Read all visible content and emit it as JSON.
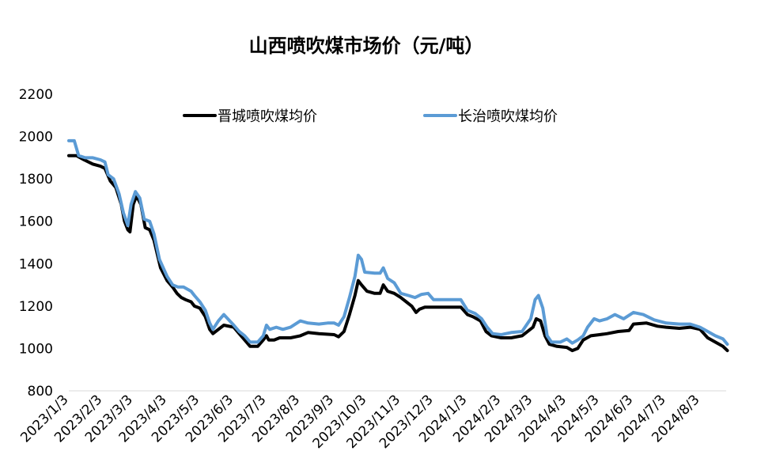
{
  "chart_data": {
    "type": "line",
    "title": "山西喷吹煤市场价（元/吨）",
    "xlabel": "",
    "ylabel": "",
    "ylim": [
      800,
      2200
    ],
    "yticks": [
      800,
      1000,
      1200,
      1400,
      1600,
      1800,
      2000,
      2200
    ],
    "xticks": [
      "2023/1/3",
      "2023/2/3",
      "2023/3/3",
      "2023/4/3",
      "2023/5/3",
      "2023/6/3",
      "2023/7/3",
      "2023/8/3",
      "2023/9/3",
      "2023/10/3",
      "2023/11/3",
      "2023/12/3",
      "2024/1/3",
      "2024/2/3",
      "2024/3/3",
      "2024/4/3",
      "2024/5/3",
      "2024/6/3",
      "2024/7/3",
      "2024/8/3"
    ],
    "grid": false,
    "legend_position": "top",
    "series": [
      {
        "name": "晋城喷吹煤均价",
        "color": "#000000",
        "points": [
          [
            "2023/1/3",
            1910
          ],
          [
            "2023/1/10",
            1910
          ],
          [
            "2023/1/17",
            1890
          ],
          [
            "2023/1/25",
            1870
          ],
          [
            "2023/2/1",
            1860
          ],
          [
            "2023/2/5",
            1850
          ],
          [
            "2023/2/10",
            1790
          ],
          [
            "2023/2/15",
            1760
          ],
          [
            "2023/2/20",
            1680
          ],
          [
            "2023/2/23",
            1600
          ],
          [
            "2023/2/26",
            1560
          ],
          [
            "2023/2/28",
            1550
          ],
          [
            "2023/3/3",
            1680
          ],
          [
            "2023/3/6",
            1720
          ],
          [
            "2023/3/10",
            1680
          ],
          [
            "2023/3/14",
            1570
          ],
          [
            "2023/3/18",
            1560
          ],
          [
            "2023/3/22",
            1510
          ],
          [
            "2023/3/28",
            1380
          ],
          [
            "2023/4/3",
            1320
          ],
          [
            "2023/4/8",
            1290
          ],
          [
            "2023/4/12",
            1260
          ],
          [
            "2023/4/16",
            1240
          ],
          [
            "2023/4/20",
            1230
          ],
          [
            "2023/4/25",
            1220
          ],
          [
            "2023/4/28",
            1200
          ],
          [
            "2023/5/3",
            1190
          ],
          [
            "2023/5/8",
            1150
          ],
          [
            "2023/5/12",
            1090
          ],
          [
            "2023/5/15",
            1070
          ],
          [
            "2023/5/20",
            1090
          ],
          [
            "2023/5/25",
            1110
          ],
          [
            "2023/6/3",
            1100
          ],
          [
            "2023/6/8",
            1070
          ],
          [
            "2023/6/13",
            1040
          ],
          [
            "2023/6/18",
            1010
          ],
          [
            "2023/6/25",
            1010
          ],
          [
            "2023/6/30",
            1040
          ],
          [
            "2023/7/3",
            1060
          ],
          [
            "2023/7/5",
            1040
          ],
          [
            "2023/7/10",
            1040
          ],
          [
            "2023/7/15",
            1050
          ],
          [
            "2023/7/25",
            1050
          ],
          [
            "2023/8/3",
            1060
          ],
          [
            "2023/8/10",
            1075
          ],
          [
            "2023/8/20",
            1070
          ],
          [
            "2023/9/3",
            1065
          ],
          [
            "2023/9/7",
            1055
          ],
          [
            "2023/9/12",
            1080
          ],
          [
            "2023/9/17",
            1160
          ],
          [
            "2023/9/22",
            1250
          ],
          [
            "2023/9/25",
            1320
          ],
          [
            "2023/9/28",
            1300
          ],
          [
            "2023/10/3",
            1270
          ],
          [
            "2023/10/10",
            1260
          ],
          [
            "2023/10/15",
            1260
          ],
          [
            "2023/10/18",
            1300
          ],
          [
            "2023/10/22",
            1270
          ],
          [
            "2023/10/28",
            1260
          ],
          [
            "2023/11/3",
            1240
          ],
          [
            "2023/11/8",
            1220
          ],
          [
            "2023/11/13",
            1200
          ],
          [
            "2023/11/17",
            1170
          ],
          [
            "2023/11/20",
            1185
          ],
          [
            "2023/11/25",
            1195
          ],
          [
            "2023/12/3",
            1195
          ],
          [
            "2023/12/15",
            1195
          ],
          [
            "2023/12/28",
            1195
          ],
          [
            "2024/1/3",
            1160
          ],
          [
            "2024/1/8",
            1150
          ],
          [
            "2024/1/15",
            1130
          ],
          [
            "2024/1/20",
            1080
          ],
          [
            "2024/1/25",
            1060
          ],
          [
            "2024/2/3",
            1050
          ],
          [
            "2024/2/12",
            1050
          ],
          [
            "2024/2/22",
            1060
          ],
          [
            "2024/3/3",
            1100
          ],
          [
            "2024/3/6",
            1140
          ],
          [
            "2024/3/10",
            1130
          ],
          [
            "2024/3/14",
            1060
          ],
          [
            "2024/3/18",
            1020
          ],
          [
            "2024/3/25",
            1010
          ],
          [
            "2024/4/3",
            1005
          ],
          [
            "2024/4/8",
            990
          ],
          [
            "2024/4/13",
            1000
          ],
          [
            "2024/4/18",
            1040
          ],
          [
            "2024/4/25",
            1060
          ],
          [
            "2024/5/3",
            1065
          ],
          [
            "2024/5/10",
            1070
          ],
          [
            "2024/5/20",
            1080
          ],
          [
            "2024/5/30",
            1085
          ],
          [
            "2024/6/3",
            1115
          ],
          [
            "2024/6/15",
            1120
          ],
          [
            "2024/6/25",
            1105
          ],
          [
            "2024/7/3",
            1100
          ],
          [
            "2024/7/15",
            1095
          ],
          [
            "2024/7/25",
            1100
          ],
          [
            "2024/8/3",
            1090
          ],
          [
            "2024/8/10",
            1050
          ],
          [
            "2024/8/17",
            1030
          ],
          [
            "2024/8/24",
            1010
          ],
          [
            "2024/8/28",
            990
          ]
        ]
      },
      {
        "name": "长治喷吹煤均价",
        "color": "#5b9bd5",
        "points": [
          [
            "2023/1/3",
            1980
          ],
          [
            "2023/1/8",
            1980
          ],
          [
            "2023/1/12",
            1910
          ],
          [
            "2023/1/18",
            1900
          ],
          [
            "2023/1/25",
            1900
          ],
          [
            "2023/2/1",
            1890
          ],
          [
            "2023/2/5",
            1880
          ],
          [
            "2023/2/8",
            1820
          ],
          [
            "2023/2/13",
            1800
          ],
          [
            "2023/2/18",
            1730
          ],
          [
            "2023/2/22",
            1640
          ],
          [
            "2023/2/26",
            1580
          ],
          [
            "2023/3/1",
            1680
          ],
          [
            "2023/3/5",
            1740
          ],
          [
            "2023/3/9",
            1710
          ],
          [
            "2023/3/13",
            1610
          ],
          [
            "2023/3/18",
            1600
          ],
          [
            "2023/3/22",
            1540
          ],
          [
            "2023/3/27",
            1420
          ],
          [
            "2023/4/3",
            1340
          ],
          [
            "2023/4/8",
            1300
          ],
          [
            "2023/4/13",
            1290
          ],
          [
            "2023/4/18",
            1290
          ],
          [
            "2023/4/25",
            1270
          ],
          [
            "2023/4/28",
            1250
          ],
          [
            "2023/5/3",
            1220
          ],
          [
            "2023/5/8",
            1180
          ],
          [
            "2023/5/12",
            1120
          ],
          [
            "2023/5/15",
            1090
          ],
          [
            "2023/5/20",
            1130
          ],
          [
            "2023/5/25",
            1160
          ],
          [
            "2023/6/3",
            1110
          ],
          [
            "2023/6/8",
            1080
          ],
          [
            "2023/6/13",
            1060
          ],
          [
            "2023/6/18",
            1030
          ],
          [
            "2023/6/25",
            1030
          ],
          [
            "2023/6/30",
            1060
          ],
          [
            "2023/7/3",
            1110
          ],
          [
            "2023/7/6",
            1090
          ],
          [
            "2023/7/12",
            1100
          ],
          [
            "2023/7/18",
            1090
          ],
          [
            "2023/7/25",
            1100
          ],
          [
            "2023/8/3",
            1130
          ],
          [
            "2023/8/10",
            1120
          ],
          [
            "2023/8/20",
            1115
          ],
          [
            "2023/8/28",
            1120
          ],
          [
            "2023/9/3",
            1120
          ],
          [
            "2023/9/7",
            1110
          ],
          [
            "2023/9/12",
            1150
          ],
          [
            "2023/9/17",
            1240
          ],
          [
            "2023/9/22",
            1340
          ],
          [
            "2023/9/25",
            1440
          ],
          [
            "2023/9/28",
            1420
          ],
          [
            "2023/10/1",
            1360
          ],
          [
            "2023/10/10",
            1355
          ],
          [
            "2023/10/15",
            1355
          ],
          [
            "2023/10/18",
            1380
          ],
          [
            "2023/10/22",
            1330
          ],
          [
            "2023/10/28",
            1310
          ],
          [
            "2023/11/3",
            1260
          ],
          [
            "2023/11/10",
            1250
          ],
          [
            "2023/11/16",
            1240
          ],
          [
            "2023/11/22",
            1255
          ],
          [
            "2023/11/28",
            1260
          ],
          [
            "2023/12/3",
            1230
          ],
          [
            "2023/12/15",
            1230
          ],
          [
            "2023/12/28",
            1230
          ],
          [
            "2024/1/3",
            1180
          ],
          [
            "2024/1/10",
            1165
          ],
          [
            "2024/1/16",
            1140
          ],
          [
            "2024/1/21",
            1100
          ],
          [
            "2024/1/26",
            1070
          ],
          [
            "2024/2/3",
            1065
          ],
          [
            "2024/2/12",
            1075
          ],
          [
            "2024/2/22",
            1080
          ],
          [
            "2024/3/1",
            1140
          ],
          [
            "2024/3/5",
            1230
          ],
          [
            "2024/3/8",
            1250
          ],
          [
            "2024/3/12",
            1190
          ],
          [
            "2024/3/16",
            1060
          ],
          [
            "2024/3/20",
            1030
          ],
          [
            "2024/3/28",
            1030
          ],
          [
            "2024/4/3",
            1045
          ],
          [
            "2024/4/8",
            1025
          ],
          [
            "2024/4/13",
            1040
          ],
          [
            "2024/4/18",
            1060
          ],
          [
            "2024/4/22",
            1100
          ],
          [
            "2024/4/28",
            1140
          ],
          [
            "2024/5/3",
            1130
          ],
          [
            "2024/5/10",
            1140
          ],
          [
            "2024/5/17",
            1160
          ],
          [
            "2024/5/25",
            1140
          ],
          [
            "2024/6/3",
            1170
          ],
          [
            "2024/6/12",
            1160
          ],
          [
            "2024/6/22",
            1135
          ],
          [
            "2024/7/3",
            1120
          ],
          [
            "2024/7/15",
            1115
          ],
          [
            "2024/7/25",
            1115
          ],
          [
            "2024/8/3",
            1100
          ],
          [
            "2024/8/10",
            1080
          ],
          [
            "2024/8/17",
            1060
          ],
          [
            "2024/8/24",
            1045
          ],
          [
            "2024/8/28",
            1020
          ]
        ]
      }
    ]
  }
}
